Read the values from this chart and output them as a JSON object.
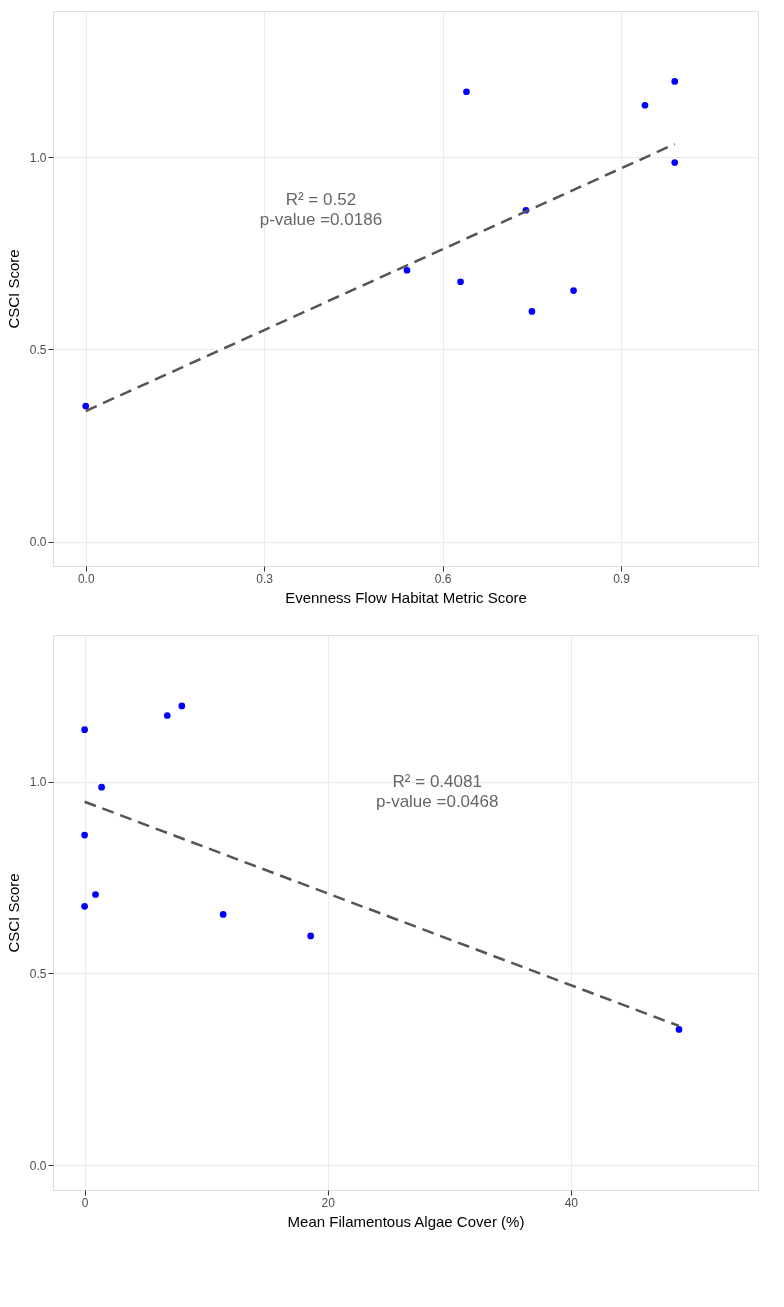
{
  "chart_data": [
    {
      "type": "scatter",
      "xlabel": "Evenness Flow Habitat Metric Score",
      "ylabel": "CSCI Score",
      "xlim": [
        -0.055,
        1.13
      ],
      "ylim": [
        -0.063,
        1.38
      ],
      "xticks": [
        {
          "value": 0,
          "label": "0.0"
        },
        {
          "value": 0.3,
          "label": "0.3"
        },
        {
          "value": 0.6,
          "label": "0.6"
        },
        {
          "value": 0.9,
          "label": "0.9"
        }
      ],
      "yticks": [
        {
          "value": 0,
          "label": "0.0"
        },
        {
          "value": 0.5,
          "label": "0.5"
        },
        {
          "value": 1.0,
          "label": "1.0"
        }
      ],
      "grid": true,
      "annotations": [
        "R² = 0.52",
        "p-value =0.0186"
      ],
      "series": [
        {
          "color": "#0000ff",
          "marker": "circle",
          "x": [
            0,
            0.64,
            0.99,
            0.94,
            0.99,
            0.74,
            0.54,
            0.63,
            0.75,
            0.82
          ],
          "values": [
            0.353,
            1.17,
            1.197,
            1.135,
            0.986,
            0.862,
            0.706,
            0.676,
            0.599,
            0.653
          ]
        },
        {
          "type": "line",
          "color": "#555555",
          "line_style": "dashed",
          "marker": "none",
          "x": [
            0,
            0.99
          ],
          "values": [
            0.34,
            1.034
          ]
        }
      ]
    },
    {
      "type": "scatter",
      "xlabel": "Mean Filamentous Algae Cover (%)",
      "ylabel": "CSCI Score",
      "xlim": [
        -2.6,
        55.4
      ],
      "ylim": [
        -0.065,
        1.383
      ],
      "xticks": [
        0,
        20,
        40
      ],
      "yticks": [
        {
          "value": 0,
          "label": "0.0"
        },
        {
          "value": 0.5,
          "label": "0.5"
        },
        {
          "value": 1.0,
          "label": "1.0"
        }
      ],
      "grid": true,
      "annotations": [
        "R² = 0.4081",
        "p-value =0.0468"
      ],
      "series": [
        {
          "color": "#0000ff",
          "marker": "circle",
          "x": [
            0,
            6.8,
            8.0,
            1.4,
            0,
            0.9,
            0,
            11.4,
            18.6,
            48.9
          ],
          "values": [
            1.136,
            1.173,
            1.198,
            0.986,
            0.861,
            0.706,
            0.675,
            0.654,
            0.598,
            0.354
          ]
        },
        {
          "type": "line",
          "color": "#555555",
          "line_style": "dashed",
          "marker": "none",
          "x": [
            0,
            48.9
          ],
          "values": [
            0.948,
            0.363
          ]
        }
      ]
    }
  ]
}
